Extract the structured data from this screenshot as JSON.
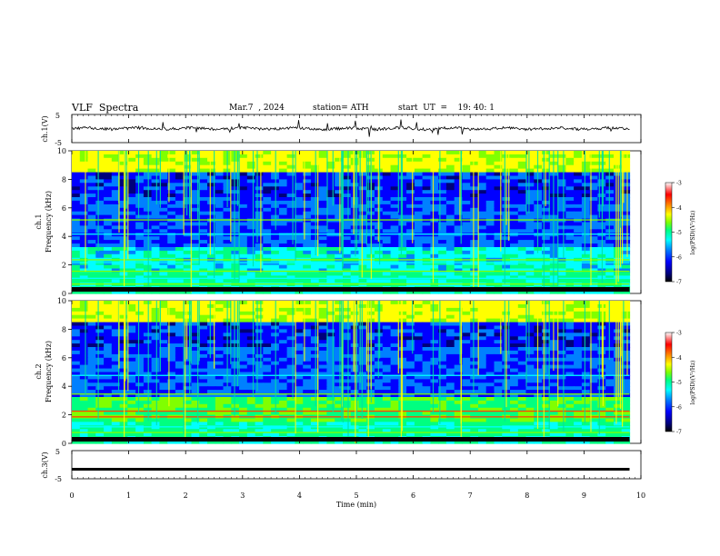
{
  "header": {
    "title": "VLF  Spectra",
    "date": "Mar.7  , 2024",
    "station": "station= ATH",
    "start": "start  UT  =    19: 40: 1"
  },
  "chart_data": [
    {
      "type": "line",
      "panel": "ch1",
      "ylabel": "ch.1(V)",
      "ylim": [
        -5,
        5
      ],
      "yticks": [
        "5",
        "-5"
      ],
      "baseline": 0
    },
    {
      "type": "heatmap",
      "panel": "ch1-spectrogram",
      "ylabel_top": "ch.1",
      "ylabel": "Frequency (kHz)",
      "ylim": [
        0,
        10
      ],
      "yticks": [
        "10",
        "8",
        "6",
        "4",
        "2",
        "0"
      ],
      "colorbar": {
        "label": "log(PSD)(V²/Hz)",
        "range": [
          -7,
          -3
        ],
        "ticks": [
          "-3",
          "-4",
          "-5",
          "-6",
          "-7"
        ]
      }
    },
    {
      "type": "heatmap",
      "panel": "ch2-spectrogram",
      "ylabel_top": "ch.2",
      "ylabel": "Frequency (kHz)",
      "ylim": [
        0,
        10
      ],
      "yticks": [
        "10",
        "8",
        "6",
        "4",
        "2",
        "0"
      ],
      "colorbar": {
        "label": "log(PSD)(V²/Hz)",
        "range": [
          -7,
          -3
        ],
        "ticks": [
          "-3",
          "-4",
          "-5",
          "-6",
          "-7"
        ]
      }
    },
    {
      "type": "line",
      "panel": "ch3",
      "ylabel": "ch.3(V)",
      "ylim": [
        -5,
        5
      ],
      "yticks": [
        "5",
        "-5"
      ],
      "baseline": -1.6
    }
  ],
  "xaxis": {
    "label": "Time  (min)",
    "ticks": [
      "0",
      "1",
      "2",
      "3",
      "4",
      "5",
      "6",
      "7",
      "8",
      "9",
      "10"
    ],
    "xlim": [
      0,
      10
    ],
    "data_end": 9.8
  },
  "colors": {
    "colormap": [
      "#000000",
      "#00007a",
      "#0000ff",
      "#0080ff",
      "#00ffff",
      "#00ff80",
      "#80ff00",
      "#ffff00",
      "#ff8000",
      "#ff0000",
      "#ffffff"
    ],
    "trace": "#000000"
  }
}
